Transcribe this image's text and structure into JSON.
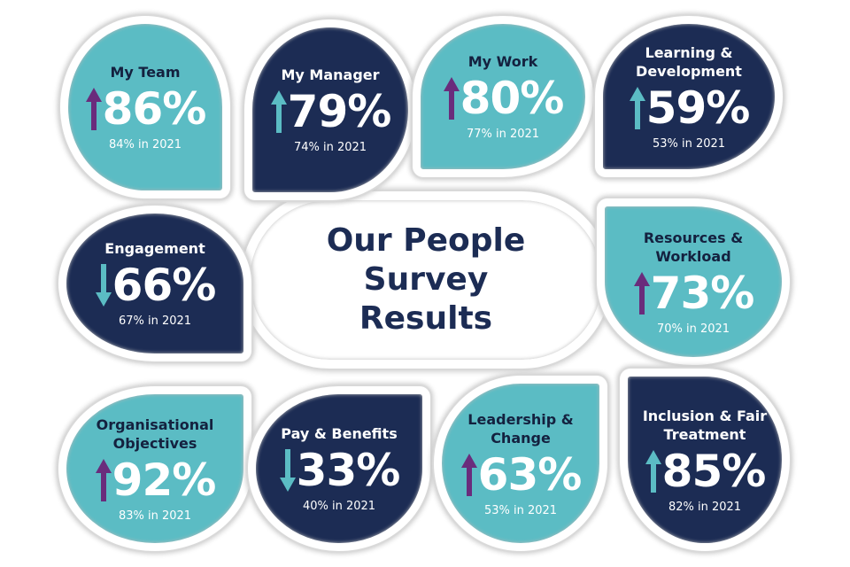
{
  "title": "Our People Survey Results",
  "tiles": [
    {
      "label": "My Team",
      "value": "86%",
      "previous": "84% in 2021"
    },
    {
      "label": "My Manager",
      "value": "79%",
      "previous": "74% in 2021"
    },
    {
      "label": "My Work",
      "value": "80%",
      "previous": "77% in 2021"
    },
    {
      "label": "Learning & Development",
      "value": "59%",
      "previous": "53% in 2021"
    },
    {
      "label": "Engagement",
      "value": "66%",
      "previous": "67% in 2021"
    },
    {
      "label": "Resources & Workload",
      "value": "73%",
      "previous": "70% in 2021"
    },
    {
      "label": "Organisational Objectives",
      "value": "92%",
      "previous": "83% in 2021"
    },
    {
      "label": "Pay & Benefits",
      "value": "33%",
      "previous": "40% in 2021"
    },
    {
      "label": "Leadership & Change",
      "value": "63%",
      "previous": "53% in 2021"
    },
    {
      "label": "Inclusion & Fair Treatment",
      "value": "85%",
      "previous": "82% in 2021"
    }
  ]
}
